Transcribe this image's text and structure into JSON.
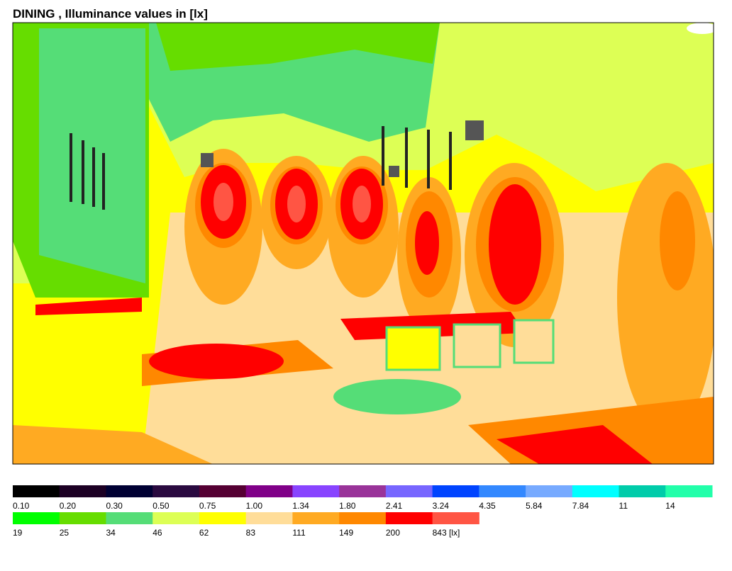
{
  "title": "DINING , Illuminance values in [lx]",
  "legend": {
    "rows": [
      [
        {
          "label": "0.10",
          "color": "#000000"
        },
        {
          "label": "0.20",
          "color": "#1c0024"
        },
        {
          "label": "0.30",
          "color": "#000033"
        },
        {
          "label": "0.50",
          "color": "#2a0a40"
        },
        {
          "label": "0.75",
          "color": "#550033"
        },
        {
          "label": "1.00",
          "color": "#800088"
        },
        {
          "label": "1.34",
          "color": "#8844ff"
        },
        {
          "label": "1.80",
          "color": "#993399"
        },
        {
          "label": "2.41",
          "color": "#7766ff"
        },
        {
          "label": "3.24",
          "color": "#0044ff"
        },
        {
          "label": "4.35",
          "color": "#3388ff"
        },
        {
          "label": "5.84",
          "color": "#77aaff"
        },
        {
          "label": "7.84",
          "color": "#00ffff"
        },
        {
          "label": "11",
          "color": "#00ccaa"
        },
        {
          "label": "14",
          "color": "#22ffaa"
        }
      ],
      [
        {
          "label": "19",
          "color": "#00ff00"
        },
        {
          "label": "25",
          "color": "#66dd00"
        },
        {
          "label": "34",
          "color": "#55dd77"
        },
        {
          "label": "46",
          "color": "#ddff55"
        },
        {
          "label": "62",
          "color": "#ffff00"
        },
        {
          "label": "83",
          "color": "#ffdd99"
        },
        {
          "label": "111",
          "color": "#ffaa22"
        },
        {
          "label": "149",
          "color": "#ff8800"
        },
        {
          "label": "200",
          "color": "#ff0000"
        },
        {
          "label": "843 [lx]",
          "color": "#ff5544"
        }
      ]
    ]
  }
}
